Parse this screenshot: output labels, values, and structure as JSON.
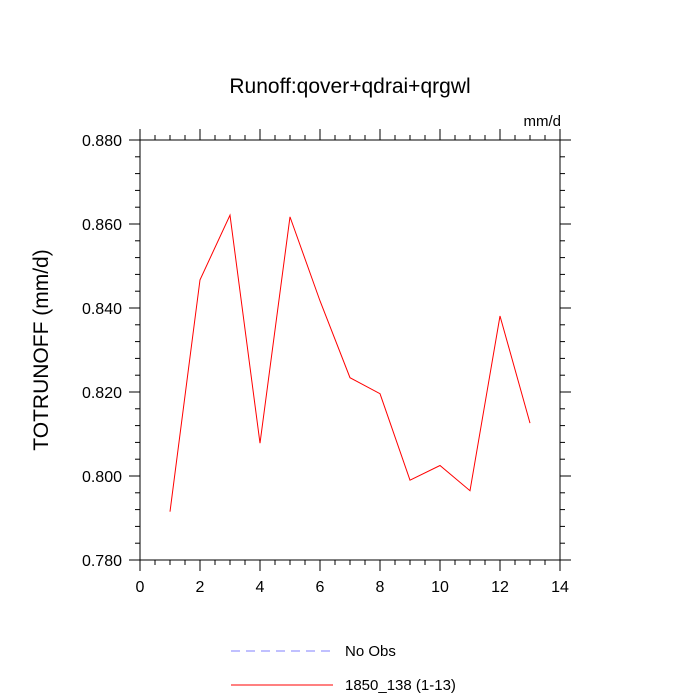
{
  "chart_data": {
    "type": "line",
    "title": "Runoff:qover+qdrai+qrgwl",
    "units_label": "mm/d",
    "xlabel": "",
    "ylabel": "TOTRUNOFF  (mm/d)",
    "xlim": [
      0,
      14
    ],
    "ylim": [
      0.78,
      0.88
    ],
    "x_ticks": [
      0,
      2,
      4,
      6,
      8,
      10,
      12,
      14
    ],
    "x_tick_labels": [
      "0",
      "2",
      "4",
      "6",
      "8",
      "10",
      "12",
      "14"
    ],
    "y_ticks": [
      0.78,
      0.8,
      0.82,
      0.84,
      0.86,
      0.88
    ],
    "y_tick_labels": [
      "0.780",
      "0.800",
      "0.820",
      "0.840",
      "0.860",
      "0.880"
    ],
    "grid": false,
    "legend_position": "bottom",
    "series": [
      {
        "name": "No Obs",
        "color": "#8080ff",
        "style": "dashed",
        "x": [],
        "values": []
      },
      {
        "name": "1850_138 (1-13)",
        "color": "#ff0000",
        "style": "solid",
        "x": [
          1,
          2,
          3,
          4,
          5,
          6,
          7,
          8,
          9,
          10,
          11,
          12,
          13
        ],
        "values": [
          0.7915,
          0.8467,
          0.8621,
          0.8078,
          0.8617,
          0.8417,
          0.8234,
          0.8196,
          0.799,
          0.8025,
          0.7965,
          0.8381,
          0.8126
        ]
      }
    ]
  }
}
